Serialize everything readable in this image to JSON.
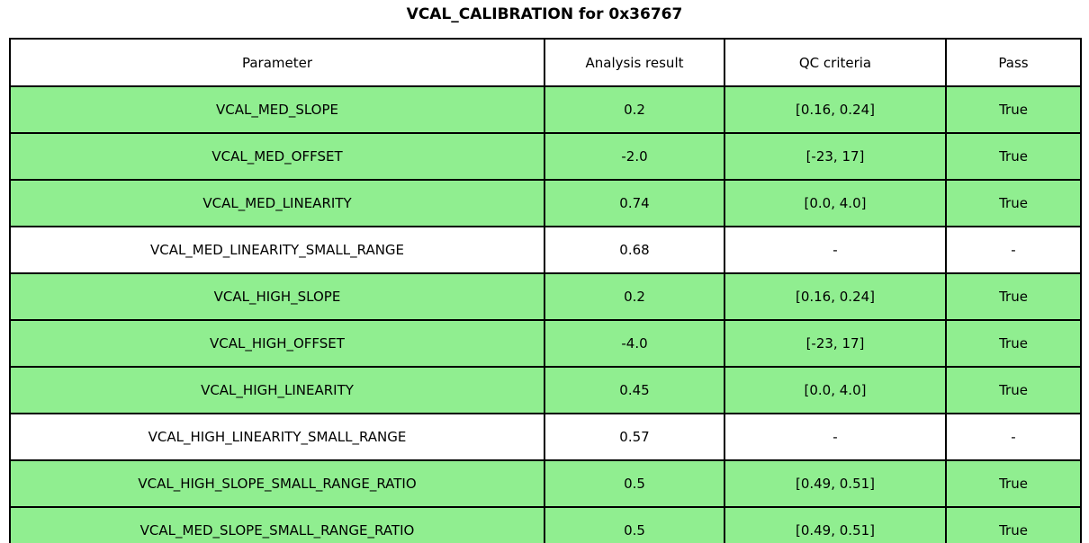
{
  "title": "VCAL_CALIBRATION for 0x36767",
  "colors": {
    "pass_row_green": "#90EE90",
    "neutral_row_white": "#ffffff",
    "border_black": "#000000"
  },
  "chart_data": {
    "type": "table",
    "title": "VCAL_CALIBRATION for 0x36767",
    "columns": [
      "Parameter",
      "Analysis result",
      "QC criteria",
      "Pass"
    ],
    "rows": [
      {
        "parameter": "VCAL_MED_SLOPE",
        "result": "0.2",
        "qc": "[0.16, 0.24]",
        "pass": "True",
        "highlight": true
      },
      {
        "parameter": "VCAL_MED_OFFSET",
        "result": "-2.0",
        "qc": "[-23, 17]",
        "pass": "True",
        "highlight": true
      },
      {
        "parameter": "VCAL_MED_LINEARITY",
        "result": "0.74",
        "qc": "[0.0, 4.0]",
        "pass": "True",
        "highlight": true
      },
      {
        "parameter": "VCAL_MED_LINEARITY_SMALL_RANGE",
        "result": "0.68",
        "qc": "-",
        "pass": "-",
        "highlight": false
      },
      {
        "parameter": "VCAL_HIGH_SLOPE",
        "result": "0.2",
        "qc": "[0.16, 0.24]",
        "pass": "True",
        "highlight": true
      },
      {
        "parameter": "VCAL_HIGH_OFFSET",
        "result": "-4.0",
        "qc": "[-23, 17]",
        "pass": "True",
        "highlight": true
      },
      {
        "parameter": "VCAL_HIGH_LINEARITY",
        "result": "0.45",
        "qc": "[0.0, 4.0]",
        "pass": "True",
        "highlight": true
      },
      {
        "parameter": "VCAL_HIGH_LINEARITY_SMALL_RANGE",
        "result": "0.57",
        "qc": "-",
        "pass": "-",
        "highlight": false
      },
      {
        "parameter": "VCAL_HIGH_SLOPE_SMALL_RANGE_RATIO",
        "result": "0.5",
        "qc": "[0.49, 0.51]",
        "pass": "True",
        "highlight": true
      },
      {
        "parameter": "VCAL_MED_SLOPE_SMALL_RANGE_RATIO",
        "result": "0.5",
        "qc": "[0.49, 0.51]",
        "pass": "True",
        "highlight": true
      }
    ]
  }
}
